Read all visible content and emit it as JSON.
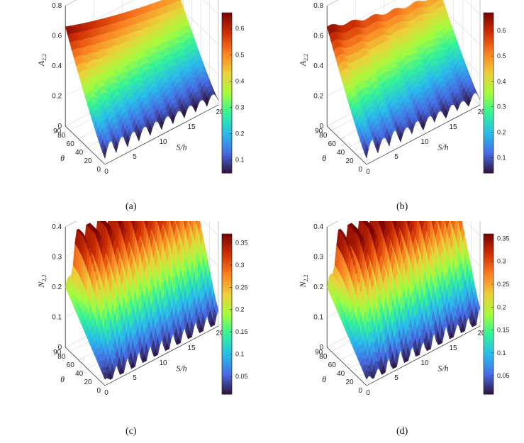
{
  "chart_data": [
    {
      "type": "surface",
      "caption": "(a)",
      "zlabel": "A_{2,2}",
      "xlabel": "S/h",
      "ylabel": "θ",
      "xlim": [
        0,
        20
      ],
      "ylim": [
        0,
        90
      ],
      "zlim": [
        0,
        0.8
      ],
      "xticks": [
        "0",
        "5",
        "10",
        "15",
        "20"
      ],
      "yticks": [
        "0",
        "20",
        "40",
        "60",
        "80",
        "90"
      ],
      "zticks": [
        "0",
        "0.2",
        "0.4",
        "0.6",
        "0.8"
      ],
      "colorbar": {
        "min": 0.05,
        "max": 0.66,
        "ticks": [
          "0.1",
          "0.2",
          "0.3",
          "0.4",
          "0.5",
          "0.6"
        ],
        "tick_values": [
          0.1,
          0.2,
          0.3,
          0.4,
          0.5,
          0.6
        ]
      },
      "colormap": "turbo",
      "description_values": {
        "max_at_theta90": 0.66,
        "min_near_theta0": 0.05,
        "wave_count": 10
      }
    },
    {
      "type": "surface",
      "caption": "(b)",
      "zlabel": "A_{2,2}",
      "xlabel": "S/h",
      "ylabel": "θ",
      "xlim": [
        0,
        20
      ],
      "ylim": [
        0,
        90
      ],
      "zlim": [
        0,
        0.8
      ],
      "xticks": [
        "0",
        "5",
        "10",
        "15",
        "20"
      ],
      "yticks": [
        "0",
        "20",
        "40",
        "60",
        "80",
        "90"
      ],
      "zticks": [
        "0",
        "0.2",
        "0.4",
        "0.6",
        "0.8"
      ],
      "colorbar": {
        "min": 0.04,
        "max": 0.67,
        "ticks": [
          "0.1",
          "0.2",
          "0.3",
          "0.4",
          "0.5",
          "0.6"
        ],
        "tick_values": [
          0.1,
          0.2,
          0.3,
          0.4,
          0.5,
          0.6
        ]
      },
      "colormap": "turbo",
      "description_values": {
        "max_at_theta90": 0.67,
        "min_near_theta0": 0.04,
        "wave_count": 10
      }
    },
    {
      "type": "surface",
      "caption": "(c)",
      "zlabel": "N_{2,2}",
      "xlabel": "S/h",
      "ylabel": "θ",
      "xlim": [
        0,
        20
      ],
      "ylim": [
        0,
        90
      ],
      "zlim": [
        0,
        0.4
      ],
      "xticks": [
        "0",
        "5",
        "10",
        "15",
        "20"
      ],
      "yticks": [
        "0",
        "20",
        "40",
        "60",
        "80",
        "90"
      ],
      "zticks": [
        "0",
        "0.1",
        "0.2",
        "0.3",
        "0.4"
      ],
      "colorbar": {
        "min": 0.01,
        "max": 0.37,
        "ticks": [
          "0.05",
          "0.1",
          "0.15",
          "0.2",
          "0.25",
          "0.3",
          "0.35"
        ],
        "tick_values": [
          0.05,
          0.1,
          0.15,
          0.2,
          0.25,
          0.3,
          0.35
        ]
      },
      "colormap": "turbo",
      "description_values": {
        "max": 0.37,
        "min": 0.01,
        "wave_count": 10
      }
    },
    {
      "type": "surface",
      "caption": "(d)",
      "zlabel": "N_{2,2}",
      "xlabel": "S/h",
      "ylabel": "θ",
      "xlim": [
        0,
        20
      ],
      "ylim": [
        0,
        90
      ],
      "zlim": [
        0,
        0.4
      ],
      "xticks": [
        "0",
        "5",
        "10",
        "15",
        "20"
      ],
      "yticks": [
        "0",
        "20",
        "40",
        "60",
        "80",
        "90"
      ],
      "zticks": [
        "0",
        "0.1",
        "0.2",
        "0.3",
        "0.4"
      ],
      "colorbar": {
        "min": 0.01,
        "max": 0.36,
        "ticks": [
          "0.05",
          "0.1",
          "0.15",
          "0.2",
          "0.25",
          "0.3",
          "0.35"
        ],
        "tick_values": [
          0.05,
          0.1,
          0.15,
          0.2,
          0.25,
          0.3,
          0.35
        ]
      },
      "colormap": "turbo",
      "description_values": {
        "max": 0.36,
        "min": 0.01,
        "wave_count": 10
      }
    }
  ]
}
